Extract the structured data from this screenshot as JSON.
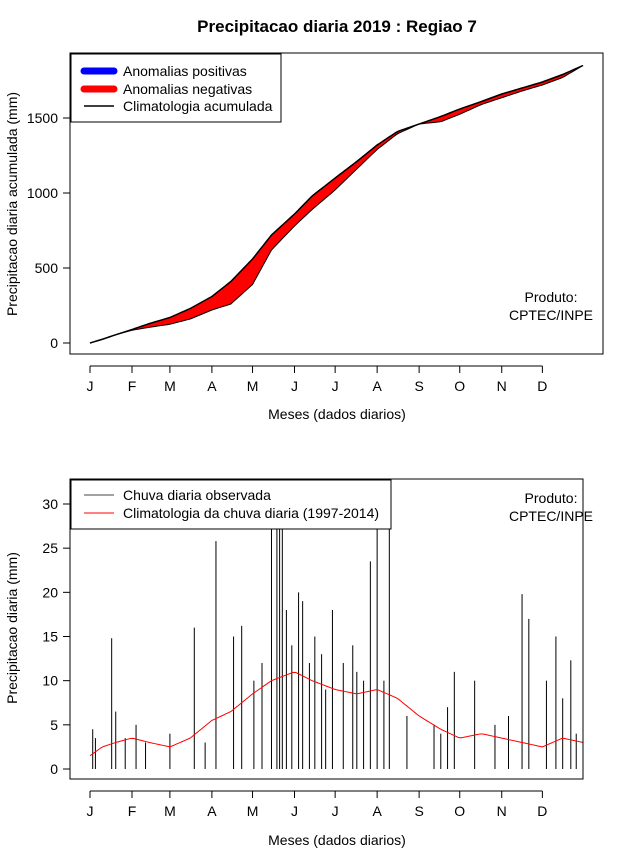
{
  "title": "Precipitacao diaria 2019 : Regiao 7",
  "product_label_line1": "Produto:",
  "product_label_line2": "CPTEC/INPE",
  "colors": {
    "positive": "#0000ff",
    "negative": "#ff0000",
    "climatology_line": "#000000",
    "observed_bars": "#000000",
    "daily_climatology": "#ff0000"
  },
  "chart_data": [
    {
      "type": "area",
      "title": "",
      "xlabel": "Meses (dados diarios)",
      "ylabel": "Precipitacao diaria acumulada (mm)",
      "x_ticks": [
        "J",
        "F",
        "M",
        "A",
        "M",
        "J",
        "J",
        "A",
        "S",
        "O",
        "N",
        "D"
      ],
      "x_tick_days": [
        1,
        32,
        60,
        91,
        121,
        152,
        182,
        213,
        244,
        274,
        305,
        335
      ],
      "xlim": [
        1,
        365
      ],
      "ylim": [
        0,
        1900
      ],
      "y_ticks": [
        0,
        500,
        1000,
        1500
      ],
      "legend": [
        "Anomalias positivas",
        "Anomalias negativas",
        "Climatologia acumulada"
      ],
      "legend_position": "top-left",
      "climatology_cumulative": {
        "days": [
          1,
          10,
          20,
          32,
          45,
          60,
          75,
          91,
          105,
          121,
          135,
          152,
          165,
          182,
          198,
          213,
          228,
          244,
          260,
          274,
          290,
          305,
          320,
          335,
          350,
          365
        ],
        "values": [
          0,
          25,
          55,
          90,
          130,
          170,
          230,
          310,
          410,
          560,
          720,
          860,
          980,
          1100,
          1210,
          1320,
          1410,
          1460,
          1510,
          1560,
          1610,
          1660,
          1700,
          1740,
          1790,
          1850
        ]
      },
      "observed_cumulative": {
        "days": [
          1,
          10,
          20,
          32,
          45,
          60,
          75,
          91,
          105,
          121,
          135,
          152,
          165,
          182,
          198,
          213,
          228,
          244,
          260,
          274,
          290,
          305,
          320,
          335,
          350,
          365
        ],
        "values": [
          0,
          22,
          55,
          85,
          105,
          125,
          160,
          220,
          260,
          390,
          620,
          780,
          890,
          1020,
          1160,
          1290,
          1395,
          1460,
          1475,
          1525,
          1590,
          1635,
          1680,
          1720,
          1770,
          1850
        ]
      }
    },
    {
      "type": "bar",
      "xlabel": "Meses (dados diarios)",
      "ylabel": "Precipitacao diaria (mm)",
      "x_ticks": [
        "J",
        "F",
        "M",
        "A",
        "M",
        "J",
        "J",
        "A",
        "S",
        "O",
        "N",
        "D"
      ],
      "x_tick_days": [
        1,
        32,
        60,
        91,
        121,
        152,
        182,
        213,
        244,
        274,
        305,
        335
      ],
      "xlim": [
        1,
        365
      ],
      "ylim": [
        0,
        30
      ],
      "y_ticks": [
        0,
        5,
        10,
        15,
        20,
        25,
        30
      ],
      "legend": [
        "Chuva diaria observada",
        "Climatologia da chuva diaria (1997-2014)"
      ],
      "legend_position": "top-left",
      "observed_daily_peaks": {
        "days": [
          3,
          5,
          17,
          20,
          27,
          35,
          42,
          60,
          78,
          86,
          94,
          107,
          113,
          122,
          128,
          135,
          139,
          141,
          143,
          146,
          150,
          155,
          158,
          163,
          167,
          172,
          175,
          180,
          188,
          195,
          198,
          203,
          208,
          213,
          218,
          222,
          235,
          255,
          260,
          265,
          270,
          285,
          300,
          310,
          320,
          325,
          338,
          345,
          350,
          356,
          360
        ],
        "values": [
          4.5,
          3.5,
          14.8,
          6.5,
          3.5,
          5.0,
          3.0,
          4.0,
          16.0,
          3.0,
          25.8,
          15.0,
          16.2,
          10.0,
          12.0,
          30.0,
          40.0,
          28.0,
          32.0,
          18.0,
          14.0,
          20.0,
          19.0,
          12.0,
          15.0,
          13.0,
          9.0,
          18.0,
          12.0,
          14.0,
          11.0,
          10.0,
          23.5,
          30.0,
          10.0,
          27.3,
          6.0,
          5.0,
          4.0,
          7.0,
          11.0,
          10.0,
          5.0,
          6.0,
          19.8,
          17.0,
          10.0,
          15.0,
          8.0,
          12.3,
          4.0
        ]
      },
      "climatology_daily": {
        "days": [
          1,
          10,
          20,
          32,
          45,
          60,
          75,
          91,
          105,
          121,
          135,
          152,
          165,
          182,
          198,
          213,
          228,
          244,
          260,
          274,
          290,
          305,
          320,
          335,
          350,
          365
        ],
        "values": [
          1.5,
          2.5,
          3.0,
          3.5,
          3.0,
          2.5,
          3.5,
          5.5,
          6.5,
          8.5,
          10.0,
          11.0,
          10.0,
          9.0,
          8.5,
          9.0,
          8.0,
          6.0,
          4.5,
          3.5,
          4.0,
          3.5,
          3.0,
          2.5,
          3.5,
          3.0
        ]
      }
    }
  ]
}
